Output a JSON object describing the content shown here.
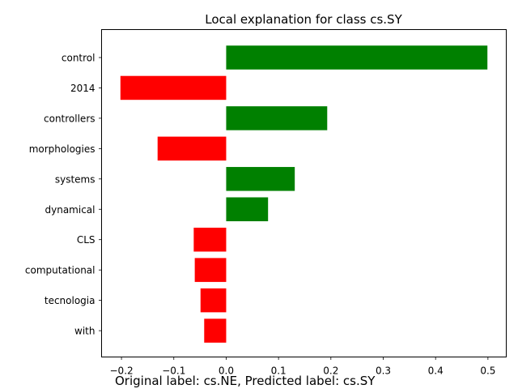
{
  "chart_data": {
    "type": "bar",
    "orientation": "horizontal",
    "title": "Local explanation for class cs.SY",
    "caption": "Original label: cs.NE, Predicted label: cs.SY",
    "categories": [
      "control",
      "2014",
      "controllers",
      "morphologies",
      "systems",
      "dynamical",
      "CLS",
      "computational",
      "tecnologia",
      "with"
    ],
    "values": [
      0.499,
      -0.202,
      0.193,
      -0.131,
      0.131,
      0.08,
      -0.062,
      -0.06,
      -0.049,
      -0.042
    ],
    "xlim": [
      -0.238,
      0.535
    ],
    "xticks": [
      -0.2,
      -0.1,
      0.0,
      0.1,
      0.2,
      0.3,
      0.4,
      0.5
    ],
    "xtick_labels": [
      "−0.2",
      "−0.1",
      "0.0",
      "0.1",
      "0.2",
      "0.3",
      "0.4",
      "0.5"
    ],
    "grid": false,
    "colors": {
      "positive": "#008000",
      "negative": "#ff0000"
    }
  }
}
